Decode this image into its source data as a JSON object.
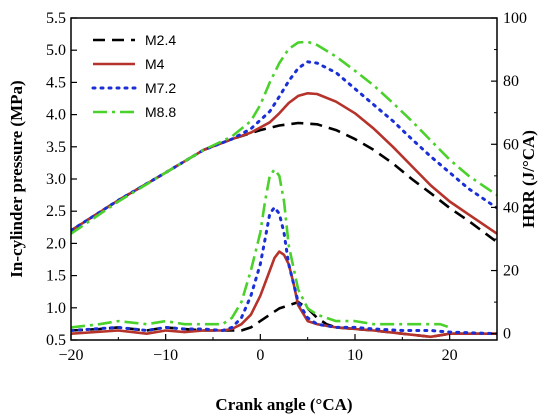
{
  "chart_data": {
    "type": "line",
    "xlabel": "Crank angle (°CA)",
    "ylabel_left": "In-cylinder pressure (MPa)",
    "ylabel_right": "HRR (J/°CA)",
    "xlim": [
      -20,
      25
    ],
    "ylim_left": [
      0.5,
      5.5
    ],
    "ylim_right": [
      -2,
      100
    ],
    "x_ticks": [
      -20,
      -10,
      0,
      10,
      20
    ],
    "y_left_ticks": [
      0.5,
      1.0,
      1.5,
      2.0,
      2.5,
      3.0,
      3.5,
      4.0,
      4.5,
      5.0,
      5.5
    ],
    "y_right_ticks": [
      0,
      20,
      40,
      60,
      80,
      100
    ],
    "legend_position": "top-left",
    "grid": false,
    "series": [
      {
        "name": "M2.4",
        "color": "#000000",
        "dash": "dash",
        "pressure": [
          [
            -20,
            2.2
          ],
          [
            -15,
            2.67
          ],
          [
            -10,
            3.1
          ],
          [
            -6,
            3.45
          ],
          [
            -3,
            3.62
          ],
          [
            0,
            3.76
          ],
          [
            2,
            3.83
          ],
          [
            4,
            3.87
          ],
          [
            6,
            3.85
          ],
          [
            8,
            3.76
          ],
          [
            10,
            3.62
          ],
          [
            12,
            3.45
          ],
          [
            14,
            3.24
          ],
          [
            16,
            3.0
          ],
          [
            18,
            2.78
          ],
          [
            20,
            2.55
          ],
          [
            22,
            2.35
          ],
          [
            25,
            2.02
          ]
        ],
        "hrr": [
          [
            -20,
            1
          ],
          [
            -17,
            1.5
          ],
          [
            -15,
            2
          ],
          [
            -12,
            1
          ],
          [
            -10,
            2
          ],
          [
            -8,
            1.5
          ],
          [
            -6,
            1
          ],
          [
            -4,
            1
          ],
          [
            -2,
            1
          ],
          [
            -1,
            2
          ],
          [
            0,
            4
          ],
          [
            1,
            6
          ],
          [
            2,
            8
          ],
          [
            3,
            9
          ],
          [
            4,
            10
          ],
          [
            5,
            8
          ],
          [
            6,
            5
          ],
          [
            7,
            3
          ],
          [
            8,
            2
          ],
          [
            10,
            1.5
          ],
          [
            12,
            1
          ],
          [
            15,
            0
          ],
          [
            18,
            -1
          ],
          [
            20,
            0
          ],
          [
            25,
            0
          ]
        ]
      },
      {
        "name": "M4",
        "color": "#b5332a",
        "dash": "solid",
        "pressure": [
          [
            -20,
            2.2
          ],
          [
            -15,
            2.67
          ],
          [
            -10,
            3.1
          ],
          [
            -6,
            3.45
          ],
          [
            -3,
            3.62
          ],
          [
            -1,
            3.72
          ],
          [
            1,
            3.88
          ],
          [
            2,
            4.02
          ],
          [
            3,
            4.18
          ],
          [
            4,
            4.29
          ],
          [
            5,
            4.33
          ],
          [
            6,
            4.32
          ],
          [
            8,
            4.2
          ],
          [
            10,
            4.02
          ],
          [
            12,
            3.78
          ],
          [
            14,
            3.5
          ],
          [
            16,
            3.2
          ],
          [
            18,
            2.9
          ],
          [
            20,
            2.65
          ],
          [
            22,
            2.45
          ],
          [
            25,
            2.15
          ]
        ],
        "hrr": [
          [
            -20,
            0
          ],
          [
            -15,
            1
          ],
          [
            -12,
            0
          ],
          [
            -10,
            1
          ],
          [
            -8,
            0.5
          ],
          [
            -6,
            1
          ],
          [
            -4,
            1
          ],
          [
            -3,
            1.5
          ],
          [
            -2,
            3
          ],
          [
            -1,
            6
          ],
          [
            0,
            12
          ],
          [
            1,
            20
          ],
          [
            1.5,
            24
          ],
          [
            2,
            26
          ],
          [
            2.5,
            25
          ],
          [
            3,
            22
          ],
          [
            3.5,
            16
          ],
          [
            4,
            9
          ],
          [
            5,
            4
          ],
          [
            6,
            3
          ],
          [
            7,
            2.5
          ],
          [
            8,
            2
          ],
          [
            10,
            1.5
          ],
          [
            12,
            1
          ],
          [
            15,
            0
          ],
          [
            18,
            -1
          ],
          [
            20,
            0
          ],
          [
            25,
            0
          ]
        ]
      },
      {
        "name": "M7.2",
        "color": "#1a2fd6",
        "dash": "dot",
        "pressure": [
          [
            -20,
            2.2
          ],
          [
            -15,
            2.67
          ],
          [
            -10,
            3.1
          ],
          [
            -6,
            3.45
          ],
          [
            -3,
            3.62
          ],
          [
            -1,
            3.78
          ],
          [
            1,
            4.05
          ],
          [
            2,
            4.28
          ],
          [
            3,
            4.52
          ],
          [
            4,
            4.72
          ],
          [
            5,
            4.82
          ],
          [
            6,
            4.8
          ],
          [
            8,
            4.65
          ],
          [
            10,
            4.4
          ],
          [
            12,
            4.15
          ],
          [
            14,
            3.9
          ],
          [
            16,
            3.62
          ],
          [
            18,
            3.35
          ],
          [
            20,
            3.1
          ],
          [
            22,
            2.85
          ],
          [
            25,
            2.55
          ]
        ],
        "hrr": [
          [
            -20,
            1
          ],
          [
            -15,
            2
          ],
          [
            -12,
            1
          ],
          [
            -10,
            2
          ],
          [
            -8,
            1.5
          ],
          [
            -6,
            1.5
          ],
          [
            -4,
            1
          ],
          [
            -3,
            2
          ],
          [
            -2,
            5
          ],
          [
            -1,
            12
          ],
          [
            0,
            22
          ],
          [
            0.5,
            30
          ],
          [
            1,
            38
          ],
          [
            1.5,
            40
          ],
          [
            2,
            38
          ],
          [
            2.5,
            32
          ],
          [
            3,
            22
          ],
          [
            4,
            10
          ],
          [
            5,
            5
          ],
          [
            6,
            3
          ],
          [
            7,
            2.5
          ],
          [
            8,
            2
          ],
          [
            10,
            2
          ],
          [
            12,
            1.5
          ],
          [
            15,
            1
          ],
          [
            18,
            1
          ],
          [
            20,
            0.5
          ],
          [
            25,
            0
          ]
        ]
      },
      {
        "name": "M8.8",
        "color": "#4bd12b",
        "dash": "dashdot",
        "pressure": [
          [
            -20,
            2.15
          ],
          [
            -15,
            2.65
          ],
          [
            -10,
            3.1
          ],
          [
            -6,
            3.45
          ],
          [
            -3,
            3.66
          ],
          [
            -1,
            3.9
          ],
          [
            0,
            4.15
          ],
          [
            1,
            4.5
          ],
          [
            2,
            4.8
          ],
          [
            3,
            5.02
          ],
          [
            4,
            5.12
          ],
          [
            5,
            5.13
          ],
          [
            6,
            5.08
          ],
          [
            8,
            4.9
          ],
          [
            10,
            4.68
          ],
          [
            12,
            4.45
          ],
          [
            14,
            4.18
          ],
          [
            16,
            3.9
          ],
          [
            18,
            3.6
          ],
          [
            20,
            3.3
          ],
          [
            22,
            3.05
          ],
          [
            25,
            2.75
          ]
        ],
        "hrr": [
          [
            -20,
            2
          ],
          [
            -17,
            3
          ],
          [
            -15,
            4
          ],
          [
            -12,
            3
          ],
          [
            -10,
            4
          ],
          [
            -8,
            3
          ],
          [
            -6,
            3
          ],
          [
            -4,
            3
          ],
          [
            -3,
            5
          ],
          [
            -2,
            10
          ],
          [
            -1,
            20
          ],
          [
            0,
            32
          ],
          [
            0.5,
            42
          ],
          [
            1,
            50
          ],
          [
            1.5,
            52
          ],
          [
            2,
            50
          ],
          [
            2.5,
            42
          ],
          [
            3,
            28
          ],
          [
            4,
            14
          ],
          [
            5,
            8
          ],
          [
            6,
            6
          ],
          [
            7,
            5
          ],
          [
            8,
            4
          ],
          [
            10,
            4
          ],
          [
            12,
            3
          ],
          [
            15,
            3
          ],
          [
            17,
            3
          ],
          [
            19,
            3
          ],
          [
            20,
            2
          ]
        ]
      }
    ]
  }
}
